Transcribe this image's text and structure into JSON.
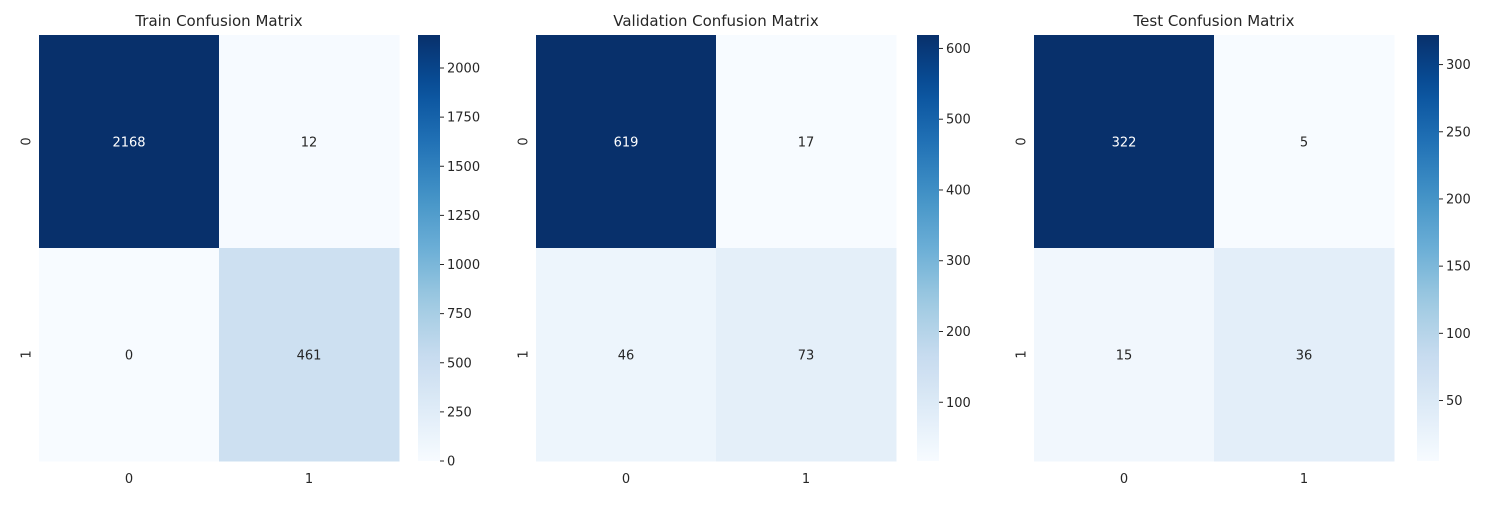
{
  "colormap": "Blues",
  "chart_data": [
    {
      "type": "heatmap",
      "title": "Train Confusion Matrix",
      "x_tick_labels": [
        "0",
        "1"
      ],
      "y_tick_labels": [
        "0",
        "1"
      ],
      "values": [
        [
          2168,
          12
        ],
        [
          0,
          461
        ]
      ],
      "cell_labels": [
        [
          "2168",
          "12"
        ],
        [
          "0",
          "461"
        ]
      ],
      "colorbar": {
        "vmin": 0,
        "vmax": 2168,
        "ticks": [
          0,
          250,
          500,
          750,
          1000,
          1250,
          1500,
          1750,
          2000
        ],
        "tick_labels": [
          "0",
          "250",
          "500",
          "750",
          "1000",
          "1250",
          "1500",
          "1750",
          "2000"
        ]
      }
    },
    {
      "type": "heatmap",
      "title": "Validation Confusion Matrix",
      "x_tick_labels": [
        "0",
        "1"
      ],
      "y_tick_labels": [
        "0",
        "1"
      ],
      "values": [
        [
          619,
          17
        ],
        [
          46,
          73
        ]
      ],
      "cell_labels": [
        [
          "619",
          "17"
        ],
        [
          "46",
          "73"
        ]
      ],
      "colorbar": {
        "vmin": 17,
        "vmax": 619,
        "ticks": [
          100,
          200,
          300,
          400,
          500,
          600
        ],
        "tick_labels": [
          "100",
          "200",
          "300",
          "400",
          "500",
          "600"
        ]
      }
    },
    {
      "type": "heatmap",
      "title": "Test Confusion Matrix",
      "x_tick_labels": [
        "0",
        "1"
      ],
      "y_tick_labels": [
        "0",
        "1"
      ],
      "values": [
        [
          322,
          5
        ],
        [
          15,
          36
        ]
      ],
      "cell_labels": [
        [
          "322",
          "5"
        ],
        [
          "15",
          "36"
        ]
      ],
      "colorbar": {
        "vmin": 5,
        "vmax": 322,
        "ticks": [
          50,
          100,
          150,
          200,
          250,
          300
        ],
        "tick_labels": [
          "50",
          "100",
          "150",
          "200",
          "250",
          "300"
        ]
      }
    }
  ]
}
